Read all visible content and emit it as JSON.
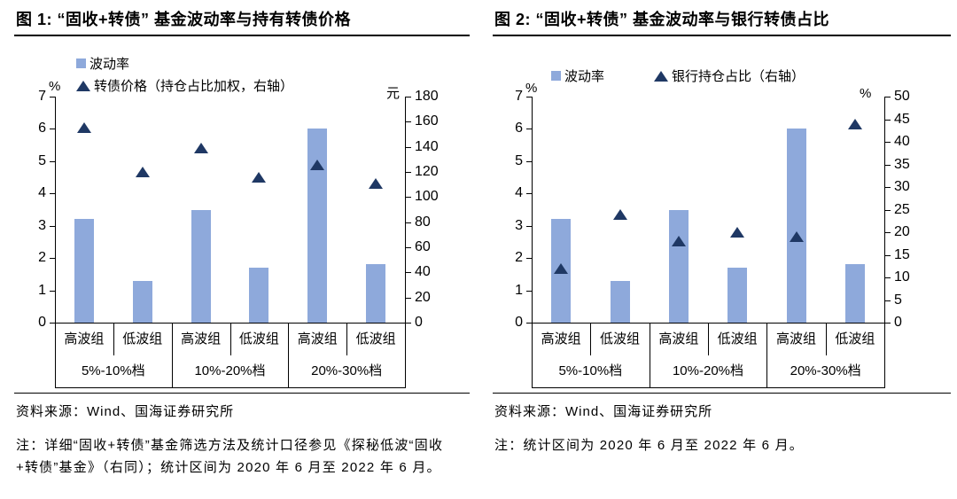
{
  "colors": {
    "bar": "#8EA9DB",
    "marker": "#1F3864",
    "axis": "#000000",
    "text": "#000000",
    "background": "#FFFFFF"
  },
  "figures": [
    {
      "title": "图 1: “固收+转债” 基金波动率与持有转债价格",
      "source": "资料来源：Wind、国海证券研究所",
      "note": "注：详细“固收+转债”基金筛选方法及统计口径参见《探秘低波“固收+转债”基金》（右同）；统计区间为 2020 年 6 月至 2022 年 6 月。"
    },
    {
      "title": "图 2: “固收+转债” 基金波动率与银行转债占比",
      "source": "资料来源：Wind、国海证券研究所",
      "note": "注：统计区间为 2020 年 6 月至 2022 年 6 月。"
    }
  ],
  "chart_data": [
    {
      "type": "bar",
      "title": "图 1: “固收+转债” 基金波动率与持有转债价格",
      "categories_sub": [
        "高波组",
        "低波组",
        "高波组",
        "低波组",
        "高波组",
        "低波组"
      ],
      "categories_group": [
        "5%-10%档",
        "10%-20%档",
        "20%-30%档"
      ],
      "left_axis": {
        "unit": "%",
        "min": 0,
        "max": 7,
        "step": 1
      },
      "right_axis": {
        "unit": "元",
        "min": 0,
        "max": 180,
        "step": 20
      },
      "legend_position": "top-left, stacked",
      "grid": false,
      "series": [
        {
          "name": "波动率",
          "type": "bar",
          "axis": "left",
          "marker": "square",
          "values": [
            3.2,
            1.3,
            3.5,
            1.7,
            6.0,
            1.8
          ]
        },
        {
          "name": "转债价格（持仓占比加权，右轴）",
          "type": "scatter",
          "axis": "right",
          "marker": "triangle",
          "values": [
            155,
            120,
            139,
            116,
            126,
            111
          ]
        }
      ]
    },
    {
      "type": "bar",
      "title": "图 2: “固收+转债” 基金波动率与银行转债占比",
      "categories_sub": [
        "高波组",
        "低波组",
        "高波组",
        "低波组",
        "高波组",
        "低波组"
      ],
      "categories_group": [
        "5%-10%档",
        "10%-20%档",
        "20%-30%档"
      ],
      "left_axis": {
        "unit": "%",
        "min": 0,
        "max": 7,
        "step": 1
      },
      "right_axis": {
        "unit": "%",
        "min": 0,
        "max": 50,
        "step": 5
      },
      "legend_position": "top-left, inline",
      "grid": false,
      "series": [
        {
          "name": "波动率",
          "type": "bar",
          "axis": "left",
          "marker": "square",
          "values": [
            3.2,
            1.3,
            3.5,
            1.7,
            6.0,
            1.8
          ]
        },
        {
          "name": "银行持仓占比（右轴）",
          "type": "scatter",
          "axis": "right",
          "marker": "triangle",
          "values": [
            12,
            24,
            18,
            20,
            19,
            44
          ]
        }
      ]
    }
  ]
}
